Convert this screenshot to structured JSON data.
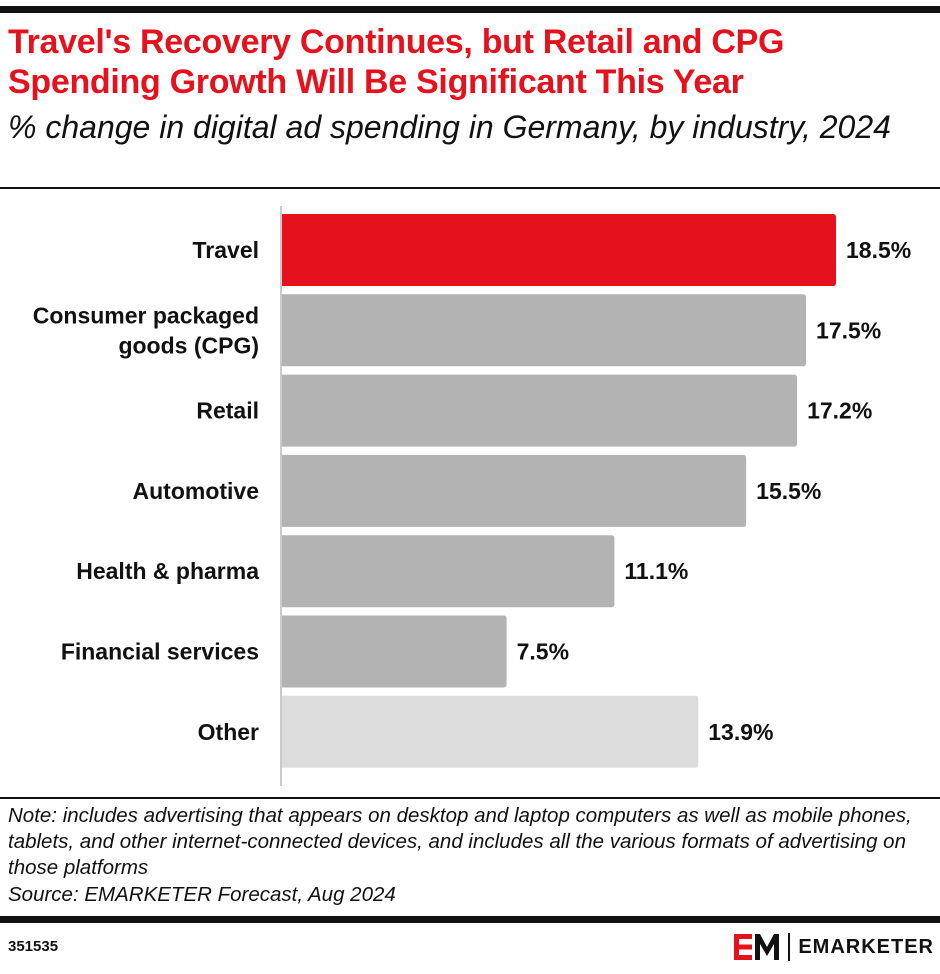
{
  "title": "Travel's Recovery Continues, but Retail and CPG Spending Growth Will Be Significant This Year",
  "subtitle": "% change in digital ad spending in Germany, by industry, 2024",
  "chart_data": {
    "type": "bar",
    "orientation": "horizontal",
    "categories": [
      [
        "Travel"
      ],
      [
        "Consumer packaged",
        "goods (CPG)"
      ],
      [
        "Retail"
      ],
      [
        "Automotive"
      ],
      [
        "Health & pharma"
      ],
      [
        "Financial services"
      ],
      [
        "Other"
      ]
    ],
    "values": [
      18.5,
      17.5,
      17.2,
      15.5,
      11.1,
      7.5,
      13.9
    ],
    "value_labels": [
      "18.5%",
      "17.5%",
      "17.2%",
      "15.5%",
      "11.1%",
      "7.5%",
      "13.9%"
    ],
    "bar_colors": [
      "#e5121d",
      "#b3b3b3",
      "#b3b3b3",
      "#b3b3b3",
      "#b3b3b3",
      "#b3b3b3",
      "#dcdcdc"
    ],
    "xlim": [
      0,
      18.5
    ],
    "grid": false,
    "legend": "none"
  },
  "note": "Note: includes advertising that appears on desktop and laptop computers as well as mobile phones, tablets, and other internet-connected devices, and includes all the various formats of advertising on those platforms",
  "source": "Source: EMARKETER Forecast, Aug 2024",
  "chart_id": "351535",
  "brand": {
    "name": "EMARKETER",
    "logo_icon": "em-logo-icon",
    "accent_color": "#e5121d"
  }
}
